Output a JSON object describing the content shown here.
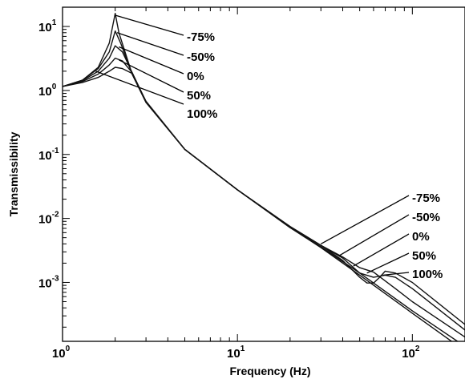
{
  "chart_data": {
    "type": "line",
    "title": "",
    "xlabel": "Frequency (Hz)",
    "ylabel": "Transmissibility",
    "xscale": "log",
    "yscale": "log",
    "xlim": [
      1,
      200
    ],
    "ylim": [
      0.00012,
      20
    ],
    "grid": false,
    "legend": "none",
    "x_ticks": [
      {
        "value": 1,
        "base": "10",
        "exp": "0"
      },
      {
        "value": 10,
        "base": "10",
        "exp": "1"
      },
      {
        "value": 100,
        "base": "10",
        "exp": "2"
      }
    ],
    "y_ticks": [
      {
        "value": 10,
        "base": "10",
        "exp": "1"
      },
      {
        "value": 1,
        "base": "10",
        "exp": "0"
      },
      {
        "value": 0.1,
        "base": "10",
        "exp": "-1"
      },
      {
        "value": 0.01,
        "base": "10",
        "exp": "-2"
      },
      {
        "value": 0.001,
        "base": "10",
        "exp": "-3"
      }
    ],
    "series": [
      {
        "label": "-75%",
        "values": [
          [
            1,
            1.15
          ],
          [
            1.3,
            1.45
          ],
          [
            1.6,
            2.3
          ],
          [
            1.85,
            5.5
          ],
          [
            2,
            16
          ],
          [
            2.1,
            8
          ],
          [
            2.5,
            1.8
          ],
          [
            3,
            0.65
          ],
          [
            5,
            0.12
          ],
          [
            10,
            0.028
          ],
          [
            20,
            0.0072
          ],
          [
            30,
            0.0035
          ],
          [
            50,
            0.0013
          ],
          [
            100,
            0.00033
          ],
          [
            200,
            8.5e-05
          ]
        ]
      },
      {
        "label": "-50%",
        "values": [
          [
            1,
            1.15
          ],
          [
            1.3,
            1.45
          ],
          [
            1.6,
            2.2
          ],
          [
            1.85,
            4.0
          ],
          [
            2,
            8.5
          ],
          [
            2.15,
            5.5
          ],
          [
            2.5,
            1.8
          ],
          [
            3,
            0.65
          ],
          [
            5,
            0.12
          ],
          [
            10,
            0.028
          ],
          [
            20,
            0.0072
          ],
          [
            30,
            0.0036
          ],
          [
            50,
            0.0014
          ],
          [
            100,
            0.00036
          ],
          [
            200,
            0.0001
          ]
        ]
      },
      {
        "label": "0%",
        "values": [
          [
            1,
            1.15
          ],
          [
            1.3,
            1.42
          ],
          [
            1.6,
            2.0
          ],
          [
            1.85,
            3.2
          ],
          [
            2,
            5.0
          ],
          [
            2.2,
            4.0
          ],
          [
            2.5,
            1.9
          ],
          [
            3,
            0.66
          ],
          [
            5,
            0.12
          ],
          [
            10,
            0.028
          ],
          [
            20,
            0.0073
          ],
          [
            30,
            0.0038
          ],
          [
            40,
            0.0025
          ],
          [
            50,
            0.0017
          ],
          [
            60,
            0.00145
          ],
          [
            80,
            0.0008
          ],
          [
            100,
            0.0005
          ],
          [
            200,
            0.00014
          ]
        ]
      },
      {
        "label": "50%",
        "values": [
          [
            1,
            1.15
          ],
          [
            1.3,
            1.38
          ],
          [
            1.6,
            1.8
          ],
          [
            1.85,
            2.5
          ],
          [
            2,
            3.2
          ],
          [
            2.2,
            2.9
          ],
          [
            2.5,
            1.9
          ],
          [
            3,
            0.67
          ],
          [
            5,
            0.12
          ],
          [
            10,
            0.028
          ],
          [
            20,
            0.0074
          ],
          [
            30,
            0.0038
          ],
          [
            40,
            0.0024
          ],
          [
            50,
            0.0014
          ],
          [
            60,
            0.0012
          ],
          [
            70,
            0.0013
          ],
          [
            80,
            0.0012
          ],
          [
            100,
            0.0008
          ],
          [
            200,
            0.00018
          ]
        ]
      },
      {
        "label": "100%",
        "values": [
          [
            1,
            1.15
          ],
          [
            1.3,
            1.33
          ],
          [
            1.6,
            1.6
          ],
          [
            1.85,
            2.0
          ],
          [
            2,
            2.3
          ],
          [
            2.2,
            2.2
          ],
          [
            2.5,
            1.85
          ],
          [
            3,
            0.68
          ],
          [
            5,
            0.12
          ],
          [
            10,
            0.028
          ],
          [
            20,
            0.0075
          ],
          [
            30,
            0.0038
          ],
          [
            40,
            0.0022
          ],
          [
            50,
            0.0012
          ],
          [
            55,
            0.00098
          ],
          [
            60,
            0.00098
          ],
          [
            65,
            0.0012
          ],
          [
            70,
            0.0015
          ],
          [
            80,
            0.0014
          ],
          [
            100,
            0.001
          ],
          [
            200,
            0.00022
          ]
        ]
      }
    ],
    "annotations_low": [
      {
        "text": "-75%",
        "pointer": [
          2,
          15
        ]
      },
      {
        "text": "-50%",
        "pointer": [
          2.05,
          8
        ]
      },
      {
        "text": "0%",
        "pointer": [
          2.1,
          4.8
        ]
      },
      {
        "text": "50%",
        "pointer": [
          2.1,
          3.0
        ]
      },
      {
        "text": "100%",
        "pointer": [
          1.55,
          2.0
        ]
      }
    ],
    "annotations_high": [
      {
        "text": "-75%",
        "pointer": [
          30,
          0.004
        ]
      },
      {
        "text": "-50%",
        "pointer": [
          38,
          0.0026
        ]
      },
      {
        "text": "0%",
        "pointer": [
          46,
          0.0018
        ]
      },
      {
        "text": "50%",
        "pointer": [
          55,
          0.0014
        ]
      },
      {
        "text": "100%",
        "pointer": [
          68,
          0.0013
        ]
      }
    ]
  }
}
